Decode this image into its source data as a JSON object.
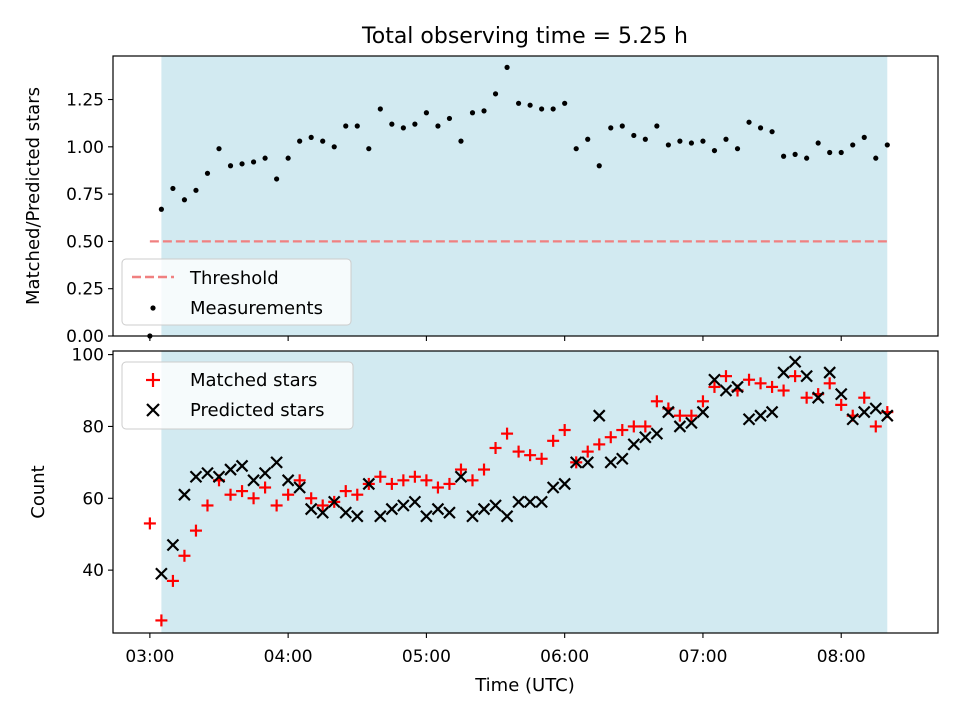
{
  "chart_data": [
    {
      "type": "scatter",
      "title": "Total observing time = 5.25 h",
      "ylabel": "Matched/Predicted stars",
      "xlabel": "",
      "ylim": [
        0,
        1.48
      ],
      "yticks": [
        "0.00",
        "0.25",
        "0.50",
        "0.75",
        "1.00",
        "1.25"
      ],
      "shaded_span": [
        "03:05",
        "08:20"
      ],
      "shade_color": "#add8e6",
      "legend": {
        "placement": "lower-left",
        "entries": [
          "Threshold",
          "Measurements"
        ]
      },
      "threshold": {
        "name": "Threshold",
        "value": 0.5,
        "x_range": [
          "03:00",
          "08:20"
        ],
        "color": "#f08080",
        "style": "dashed"
      },
      "series": [
        {
          "name": "Measurements",
          "color": "#000000",
          "marker": "dot",
          "x": [
            "03:00",
            "03:05",
            "03:10",
            "03:15",
            "03:20",
            "03:25",
            "03:30",
            "03:35",
            "03:40",
            "03:45",
            "03:50",
            "03:55",
            "04:00",
            "04:05",
            "04:10",
            "04:15",
            "04:20",
            "04:25",
            "04:30",
            "04:35",
            "04:40",
            "04:45",
            "04:50",
            "04:55",
            "05:00",
            "05:05",
            "05:10",
            "05:15",
            "05:20",
            "05:25",
            "05:30",
            "05:35",
            "05:40",
            "05:45",
            "05:50",
            "05:55",
            "06:00",
            "06:05",
            "06:10",
            "06:15",
            "06:20",
            "06:25",
            "06:30",
            "06:35",
            "06:40",
            "06:45",
            "06:50",
            "06:55",
            "07:00",
            "07:05",
            "07:10",
            "07:15",
            "07:20",
            "07:25",
            "07:30",
            "07:35",
            "07:40",
            "07:45",
            "07:50",
            "07:55",
            "08:00",
            "08:05",
            "08:10",
            "08:15",
            "08:20"
          ],
          "y": [
            0.0,
            0.67,
            0.78,
            0.72,
            0.77,
            0.86,
            0.99,
            0.9,
            0.91,
            0.92,
            0.94,
            0.83,
            0.94,
            1.03,
            1.05,
            1.03,
            1.0,
            1.11,
            1.11,
            0.99,
            1.2,
            1.12,
            1.1,
            1.12,
            1.18,
            1.11,
            1.15,
            1.03,
            1.18,
            1.19,
            1.28,
            1.42,
            1.23,
            1.22,
            1.2,
            1.2,
            1.23,
            0.99,
            1.04,
            0.9,
            1.1,
            1.11,
            1.06,
            1.04,
            1.11,
            1.01,
            1.03,
            1.02,
            1.03,
            0.98,
            1.04,
            0.99,
            1.13,
            1.1,
            1.08,
            0.95,
            0.96,
            0.94,
            1.02,
            0.97,
            0.97,
            1.01,
            1.05,
            0.94,
            1.01
          ]
        }
      ]
    },
    {
      "type": "scatter",
      "title": "",
      "ylabel": "Count",
      "xlabel": "Time (UTC)",
      "ylim": [
        22.5,
        101
      ],
      "yticks": [
        "40",
        "60",
        "80",
        "100"
      ],
      "xlim": [
        "02:44",
        "08:42"
      ],
      "xticks": [
        "03:00",
        "04:00",
        "05:00",
        "06:00",
        "07:00",
        "08:00"
      ],
      "shaded_span": [
        "03:05",
        "08:20"
      ],
      "shade_color": "#add8e6",
      "legend": {
        "placement": "upper-left",
        "entries": [
          "Matched stars",
          "Predicted stars"
        ]
      },
      "series": [
        {
          "name": "Matched stars",
          "color": "#ff0000",
          "marker": "plus",
          "x": [
            "03:00",
            "03:05",
            "03:10",
            "03:15",
            "03:20",
            "03:25",
            "03:30",
            "03:35",
            "03:40",
            "03:45",
            "03:50",
            "03:55",
            "04:00",
            "04:05",
            "04:10",
            "04:15",
            "04:20",
            "04:25",
            "04:30",
            "04:35",
            "04:40",
            "04:45",
            "04:50",
            "04:55",
            "05:00",
            "05:05",
            "05:10",
            "05:15",
            "05:20",
            "05:25",
            "05:30",
            "05:35",
            "05:40",
            "05:45",
            "05:50",
            "05:55",
            "06:00",
            "06:05",
            "06:10",
            "06:15",
            "06:20",
            "06:25",
            "06:30",
            "06:35",
            "06:40",
            "06:45",
            "06:50",
            "06:55",
            "07:00",
            "07:05",
            "07:10",
            "07:15",
            "07:20",
            "07:25",
            "07:30",
            "07:35",
            "07:40",
            "07:45",
            "07:50",
            "07:55",
            "08:00",
            "08:05",
            "08:10",
            "08:15",
            "08:20"
          ],
          "y": [
            53,
            26,
            37,
            44,
            51,
            58,
            65,
            61,
            62,
            60,
            63,
            58,
            61,
            65,
            60,
            58,
            59,
            62,
            61,
            64,
            66,
            64,
            65,
            66,
            65,
            63,
            64,
            68,
            65,
            68,
            74,
            78,
            73,
            72,
            71,
            76,
            79,
            70,
            73,
            75,
            77,
            79,
            80,
            80,
            87,
            85,
            83,
            83,
            87,
            91,
            94,
            90,
            93,
            92,
            91,
            90,
            94,
            88,
            89,
            92,
            86,
            83,
            88,
            80,
            84
          ]
        },
        {
          "name": "Predicted stars",
          "color": "#000000",
          "marker": "x",
          "x": [
            "03:05",
            "03:10",
            "03:15",
            "03:20",
            "03:25",
            "03:30",
            "03:35",
            "03:40",
            "03:45",
            "03:50",
            "03:55",
            "04:00",
            "04:05",
            "04:10",
            "04:15",
            "04:20",
            "04:25",
            "04:30",
            "04:35",
            "04:40",
            "04:45",
            "04:50",
            "04:55",
            "05:00",
            "05:05",
            "05:10",
            "05:15",
            "05:20",
            "05:25",
            "05:30",
            "05:35",
            "05:40",
            "05:45",
            "05:50",
            "05:55",
            "06:00",
            "06:05",
            "06:10",
            "06:15",
            "06:20",
            "06:25",
            "06:30",
            "06:35",
            "06:40",
            "06:45",
            "06:50",
            "06:55",
            "07:00",
            "07:05",
            "07:10",
            "07:15",
            "07:20",
            "07:25",
            "07:30",
            "07:35",
            "07:40",
            "07:45",
            "07:50",
            "07:55",
            "08:00",
            "08:05",
            "08:10",
            "08:15",
            "08:20"
          ],
          "y": [
            39,
            47,
            61,
            66,
            67,
            66,
            68,
            69,
            65,
            67,
            70,
            65,
            63,
            57,
            56,
            59,
            56,
            55,
            64,
            55,
            57,
            58,
            59,
            55,
            57,
            56,
            66,
            55,
            57,
            58,
            55,
            59,
            59,
            59,
            63,
            64,
            70,
            70,
            83,
            70,
            71,
            75,
            77,
            78,
            84,
            80,
            81,
            84,
            93,
            90,
            91,
            82,
            83,
            84,
            95,
            98,
            94,
            88,
            95,
            89,
            82,
            84,
            85,
            83
          ]
        }
      ]
    }
  ]
}
